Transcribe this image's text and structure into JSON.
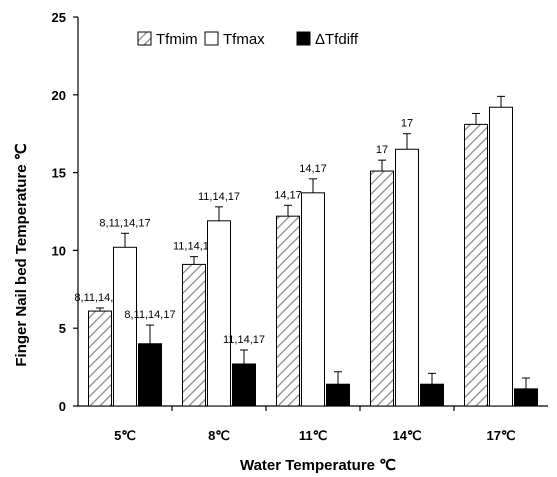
{
  "chart_data": {
    "type": "bar",
    "title": "",
    "xlabel": "Water Temperature ℃",
    "ylabel": "Finger Nail bed Temperature ℃",
    "ylim": [
      0,
      25
    ],
    "yticks": [
      "0",
      "5",
      "10",
      "15",
      "20",
      "25"
    ],
    "categories": [
      "5℃",
      "8℃",
      "11℃",
      "14℃",
      "17℃"
    ],
    "grid": false,
    "legend_position": "top",
    "series": [
      {
        "name": "Tfmim",
        "style": "hatched",
        "color": "#888888",
        "values": [
          6.1,
          9.1,
          12.2,
          15.1,
          18.1
        ],
        "error": [
          0.2,
          0.5,
          0.7,
          0.7,
          0.7
        ],
        "annotations": [
          "8,11,14,17",
          "11,14,17",
          "14,17",
          "17",
          ""
        ]
      },
      {
        "name": "Tfmax",
        "style": "white",
        "color": "#ffffff",
        "values": [
          10.2,
          11.9,
          13.7,
          16.5,
          19.2
        ],
        "error": [
          0.9,
          0.9,
          0.9,
          1.0,
          0.7
        ],
        "annotations": [
          "8,11,14,17",
          "11,14,17",
          "14,17",
          "17",
          ""
        ]
      },
      {
        "name": "ΔTfdiff",
        "style": "black",
        "color": "#000000",
        "values": [
          4.0,
          2.7,
          1.4,
          1.4,
          1.1
        ],
        "error": [
          1.2,
          0.9,
          0.8,
          0.7,
          0.7
        ],
        "annotations": [
          "8,11,14,17",
          "11,14,17",
          "",
          "",
          ""
        ]
      }
    ]
  }
}
